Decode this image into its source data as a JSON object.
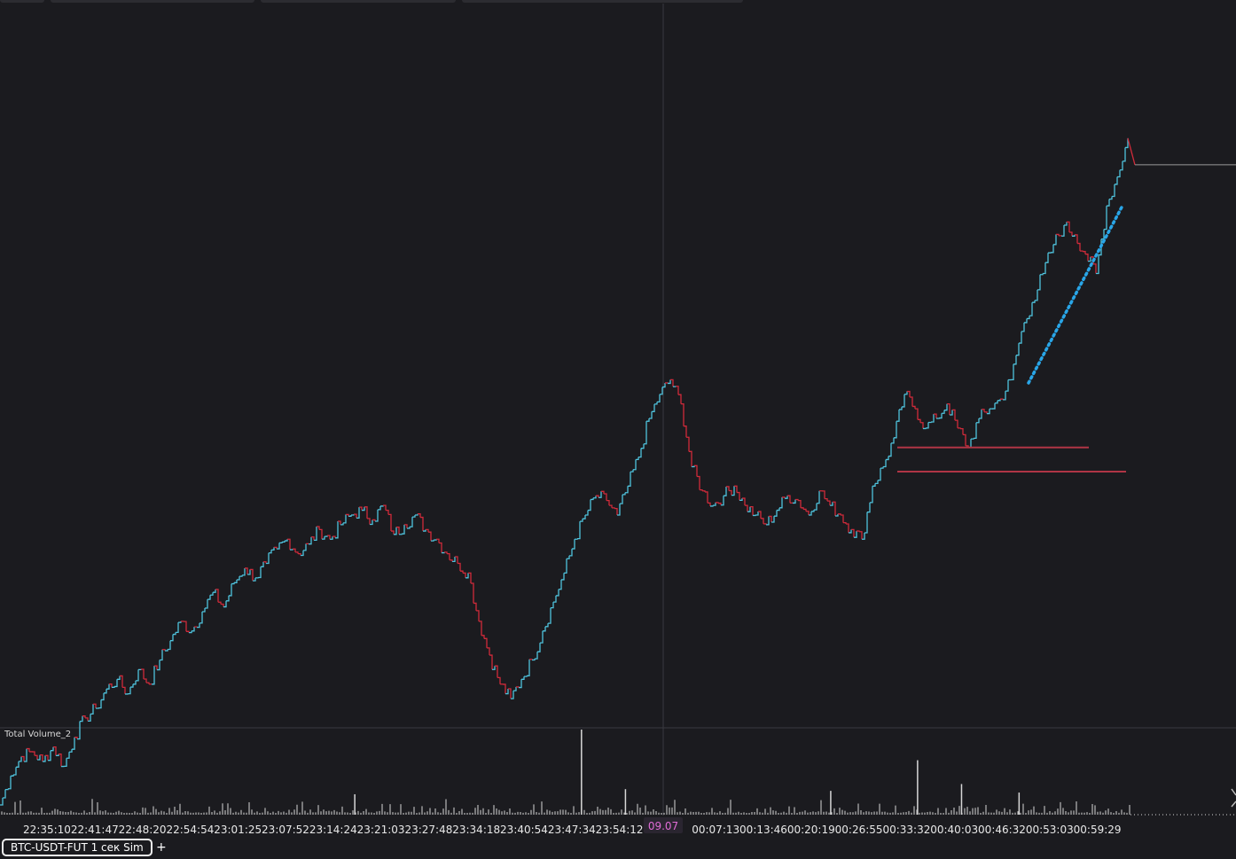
{
  "colors": {
    "background": "#1b1b1f",
    "up": "#4fc3dd",
    "down": "#d02b3a",
    "trend": "#29a6e8",
    "level": "#b03545",
    "volume": "#d7d7d7",
    "date_badge": "#e06cd6"
  },
  "tabs": {
    "instrument_label": "BTC-USDT-FUT 1 сек Sim",
    "add_label": "+"
  },
  "chart_data": {
    "type": "line",
    "x_tick_labels": [
      "22:35:10",
      "22:41:47",
      "22:48:20",
      "22:54:54",
      "23:01:25",
      "23:07:52",
      "23:14:24",
      "23:21:03",
      "23:27:48",
      "23:34:18",
      "23:40:54",
      "23:47:34",
      "23:54:12",
      "09.07",
      "00:07:13",
      "00:13:46",
      "00:20:19",
      "00:26:55",
      "00:33:32",
      "00:40:03",
      "00:46:32",
      "00:53:03",
      "00:59:29"
    ],
    "date_marker": "09.07",
    "price_axis_labels": false,
    "grid": false,
    "price_relative": [
      0,
      6,
      10,
      11,
      9,
      12,
      8,
      14,
      18,
      20,
      24,
      26,
      23,
      28,
      25,
      30,
      34,
      38,
      36,
      40,
      44,
      41,
      46,
      49,
      47,
      50,
      53,
      55,
      52,
      54,
      57,
      55,
      58,
      60,
      61,
      59,
      62,
      56,
      58,
      60,
      57,
      55,
      52,
      50,
      48,
      38,
      31,
      25,
      22,
      26,
      30,
      36,
      42,
      48,
      55,
      60,
      64,
      63,
      60,
      66,
      72,
      80,
      85,
      88,
      83,
      70,
      65,
      62,
      64,
      66,
      62,
      60,
      58,
      61,
      64,
      63,
      60,
      65,
      62,
      60,
      57,
      55,
      66,
      70,
      76,
      85,
      82,
      78,
      80,
      83,
      78,
      74,
      80,
      82,
      84,
      88,
      98,
      104,
      110,
      116,
      120,
      118,
      114,
      110,
      124,
      130,
      138
    ],
    "levels": [
      {
        "label": "",
        "value_relative": 74
      },
      {
        "label": "",
        "value_relative": 69
      }
    ],
    "indicator": {
      "label": "Total Volume_2",
      "spikes": [
        {
          "at": 0.514,
          "value": 1.0
        },
        {
          "at": 0.812,
          "value": 0.64
        },
        {
          "at": 0.851,
          "value": 0.36
        },
        {
          "at": 0.735,
          "value": 0.28
        },
        {
          "at": 0.313,
          "value": 0.24
        },
        {
          "at": 0.902,
          "value": 0.26
        },
        {
          "at": 0.553,
          "value": 0.3
        }
      ]
    }
  }
}
